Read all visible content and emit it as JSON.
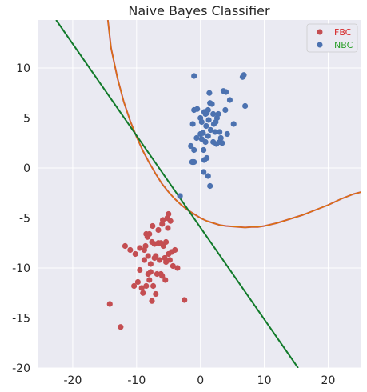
{
  "chart_data": {
    "type": "scatter",
    "title": "Naive Bayes Classifier",
    "xlabel": "",
    "ylabel": "",
    "xlim": [
      -25.5,
      25.2
    ],
    "ylim": [
      -20,
      14.8
    ],
    "xticks": [
      -20,
      -10,
      0,
      10,
      20
    ],
    "yticks": [
      -20,
      -15,
      -10,
      -5,
      0,
      5,
      10
    ],
    "grid": true,
    "legend_position": "top-right",
    "series": [
      {
        "name": "FBC",
        "kind": "points",
        "color": "#c44e52",
        "legend_text_color": "#d62728",
        "points": [
          [
            -14.2,
            -13.6
          ],
          [
            -12.5,
            -15.9
          ],
          [
            -11.8,
            -7.8
          ],
          [
            -11.0,
            -8.2
          ],
          [
            -10.4,
            -11.8
          ],
          [
            -10.2,
            -8.6
          ],
          [
            -9.8,
            -11.4
          ],
          [
            -9.5,
            -10.2
          ],
          [
            -9.2,
            -12.0
          ],
          [
            -9.0,
            -12.5
          ],
          [
            -8.8,
            -8.2
          ],
          [
            -8.6,
            -7.8
          ],
          [
            -8.5,
            -6.6
          ],
          [
            -8.3,
            -6.9
          ],
          [
            -8.0,
            -6.6
          ],
          [
            -8.5,
            -11.8
          ],
          [
            -8.2,
            -10.6
          ],
          [
            -7.8,
            -9.6
          ],
          [
            -7.6,
            -7.4
          ],
          [
            -7.5,
            -5.8
          ],
          [
            -7.4,
            -11.8
          ],
          [
            -7.2,
            -7.6
          ],
          [
            -7.0,
            -8.8
          ],
          [
            -6.8,
            -10.6
          ],
          [
            -6.6,
            -6.2
          ],
          [
            -6.4,
            -9.2
          ],
          [
            -6.2,
            -7.5
          ],
          [
            -6.0,
            -5.6
          ],
          [
            -5.9,
            -5.2
          ],
          [
            -5.8,
            -7.8
          ],
          [
            -5.6,
            -9.0
          ],
          [
            -5.5,
            -11.2
          ],
          [
            -5.4,
            -7.4
          ],
          [
            -5.2,
            -5.0
          ],
          [
            -5.0,
            -4.6
          ],
          [
            -5.1,
            -6.0
          ],
          [
            -4.8,
            -9.2
          ],
          [
            -4.5,
            -8.4
          ],
          [
            -4.3,
            -9.8
          ],
          [
            -4.0,
            -8.2
          ],
          [
            -3.6,
            -10.0
          ],
          [
            -2.5,
            -13.2
          ],
          [
            -7.6,
            -13.3
          ],
          [
            -8.0,
            -11.2
          ],
          [
            -7.0,
            -12.6
          ],
          [
            -6.0,
            -10.8
          ],
          [
            -9.5,
            -8.0
          ],
          [
            -8.8,
            -9.2
          ],
          [
            -7.2,
            -9.0
          ],
          [
            -6.6,
            -7.5
          ],
          [
            -7.8,
            -10.4
          ],
          [
            -6.2,
            -10.6
          ],
          [
            -5.0,
            -8.6
          ],
          [
            -8.2,
            -8.8
          ],
          [
            -4.7,
            -5.3
          ],
          [
            -5.4,
            -9.4
          ]
        ]
      },
      {
        "name": "NBC",
        "kind": "points",
        "color": "#4c72b0",
        "legend_text_color": "#2ca02c",
        "points": [
          [
            -1.0,
            9.2
          ],
          [
            -1.0,
            5.8
          ],
          [
            -0.5,
            5.9
          ],
          [
            -1.2,
            4.4
          ],
          [
            0.0,
            5.0
          ],
          [
            0.2,
            4.6
          ],
          [
            0.4,
            3.5
          ],
          [
            0.6,
            5.6
          ],
          [
            0.8,
            5.4
          ],
          [
            1.0,
            5.5
          ],
          [
            1.2,
            5.8
          ],
          [
            1.4,
            7.5
          ],
          [
            1.5,
            6.5
          ],
          [
            1.8,
            6.4
          ],
          [
            2.0,
            5.4
          ],
          [
            2.1,
            4.4
          ],
          [
            2.4,
            4.6
          ],
          [
            2.6,
            5.0
          ],
          [
            2.8,
            5.4
          ],
          [
            3.0,
            3.6
          ],
          [
            3.2,
            3.0
          ],
          [
            3.4,
            2.5
          ],
          [
            3.6,
            7.7
          ],
          [
            3.9,
            5.8
          ],
          [
            4.0,
            7.6
          ],
          [
            4.2,
            3.4
          ],
          [
            4.6,
            6.8
          ],
          [
            5.2,
            4.4
          ],
          [
            6.6,
            9.1
          ],
          [
            6.8,
            9.3
          ],
          [
            7.0,
            6.2
          ],
          [
            -1.5,
            2.2
          ],
          [
            -1.0,
            1.8
          ],
          [
            -0.6,
            3.0
          ],
          [
            0.0,
            3.4
          ],
          [
            0.5,
            1.8
          ],
          [
            0.8,
            2.6
          ],
          [
            1.2,
            3.2
          ],
          [
            1.6,
            3.8
          ],
          [
            2.0,
            2.6
          ],
          [
            2.5,
            2.4
          ],
          [
            3.0,
            2.6
          ],
          [
            -1.3,
            0.6
          ],
          [
            -1.0,
            0.6
          ],
          [
            0.6,
            0.8
          ],
          [
            1.0,
            1.0
          ],
          [
            0.5,
            -0.4
          ],
          [
            1.2,
            -0.8
          ],
          [
            1.5,
            -1.8
          ],
          [
            -3.2,
            -2.8
          ],
          [
            0.9,
            4.2
          ],
          [
            1.3,
            4.8
          ],
          [
            2.3,
            3.6
          ],
          [
            0.2,
            2.9
          ]
        ]
      },
      {
        "name": "",
        "kind": "curve",
        "color": "#c44e52",
        "points": [
          [
            -14.5,
            14.8
          ],
          [
            -14,
            12.0
          ],
          [
            -13,
            9.0
          ],
          [
            -12,
            6.6
          ],
          [
            -11,
            4.7
          ],
          [
            -10,
            3.1
          ],
          [
            -9,
            1.7
          ],
          [
            -8,
            0.5
          ],
          [
            -7,
            -0.6
          ],
          [
            -6,
            -1.6
          ],
          [
            -5,
            -2.4
          ],
          [
            -4,
            -3.1
          ],
          [
            -3,
            -3.7
          ],
          [
            -2,
            -4.2
          ],
          [
            -1,
            -4.6
          ],
          [
            0,
            -5.0
          ],
          [
            1,
            -5.3
          ],
          [
            2,
            -5.5
          ],
          [
            3,
            -5.7
          ],
          [
            4,
            -5.8
          ],
          [
            5,
            -5.85
          ],
          [
            6,
            -5.9
          ],
          [
            7,
            -5.95
          ],
          [
            8,
            -5.9
          ],
          [
            9,
            -5.9
          ],
          [
            10,
            -5.8
          ],
          [
            12,
            -5.5
          ],
          [
            14,
            -5.1
          ],
          [
            16,
            -4.7
          ],
          [
            18,
            -4.2
          ],
          [
            20,
            -3.7
          ],
          [
            22,
            -3.1
          ],
          [
            24,
            -2.6
          ],
          [
            25.2,
            -2.4
          ]
        ]
      },
      {
        "name": "",
        "kind": "curve",
        "color": "#e07b00",
        "points": [
          [
            -14.5,
            14.8
          ],
          [
            -14,
            12.0
          ],
          [
            -13,
            9.0
          ],
          [
            -12,
            6.6
          ],
          [
            -11,
            4.7
          ],
          [
            -10,
            3.1
          ],
          [
            -9,
            1.7
          ],
          [
            -8,
            0.5
          ],
          [
            -7,
            -0.6
          ],
          [
            -6,
            -1.6
          ],
          [
            -5,
            -2.4
          ],
          [
            -4,
            -3.1
          ],
          [
            -3,
            -3.7
          ],
          [
            -2,
            -4.2
          ],
          [
            -1,
            -4.6
          ],
          [
            0,
            -5.0
          ],
          [
            1,
            -5.3
          ],
          [
            2,
            -5.5
          ],
          [
            3,
            -5.7
          ],
          [
            4,
            -5.8
          ],
          [
            5,
            -5.85
          ],
          [
            6,
            -5.9
          ],
          [
            7,
            -5.95
          ],
          [
            8,
            -5.9
          ],
          [
            9,
            -5.9
          ],
          [
            10,
            -5.8
          ],
          [
            12,
            -5.5
          ],
          [
            14,
            -5.1
          ],
          [
            16,
            -4.7
          ],
          [
            18,
            -4.2
          ],
          [
            20,
            -3.7
          ],
          [
            22,
            -3.1
          ],
          [
            24,
            -2.6
          ],
          [
            25.2,
            -2.4
          ]
        ]
      },
      {
        "name": "",
        "kind": "curve",
        "color": "#117a2a",
        "points": [
          [
            -22.6,
            14.8
          ],
          [
            15.3,
            -20.0
          ]
        ]
      }
    ]
  }
}
